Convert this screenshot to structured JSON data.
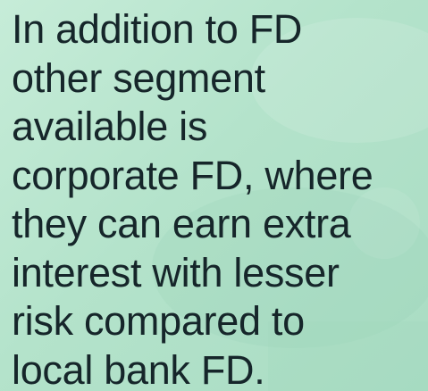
{
  "text": {
    "lines": [
      "In addition to FD",
      "other segment",
      "available is",
      "corporate FD, where",
      "they can earn extra",
      "interest with lesser",
      "risk compared to",
      "local bank FD."
    ]
  }
}
